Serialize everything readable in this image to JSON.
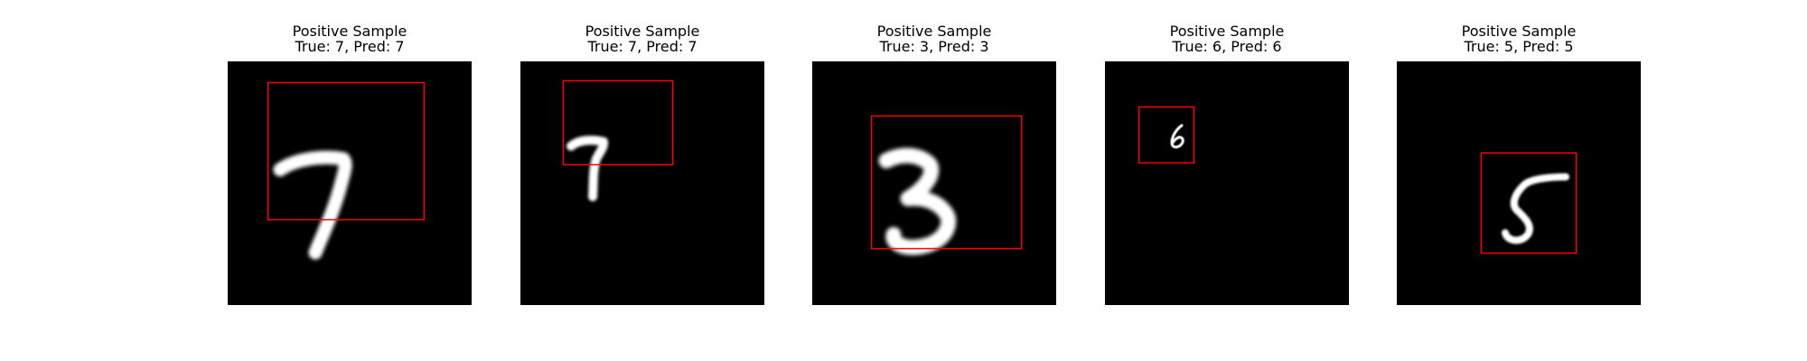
{
  "figure": {
    "panels": [
      {
        "title": "Positive Sample",
        "subtitle": "True: 7, Pred: 7",
        "digit": "7",
        "box_color": "#ff0000"
      },
      {
        "title": "Positive Sample",
        "subtitle": "True: 7, Pred: 7",
        "digit": "7",
        "box_color": "#ff0000"
      },
      {
        "title": "Positive Sample",
        "subtitle": "True: 3, Pred: 3",
        "digit": "3",
        "box_color": "#ff0000"
      },
      {
        "title": "Positive Sample",
        "subtitle": "True: 6, Pred: 6",
        "digit": "6",
        "box_color": "#ff0000"
      },
      {
        "title": "Positive Sample",
        "subtitle": "True: 5, Pred: 5",
        "digit": "5",
        "box_color": "#ff0000"
      }
    ]
  }
}
